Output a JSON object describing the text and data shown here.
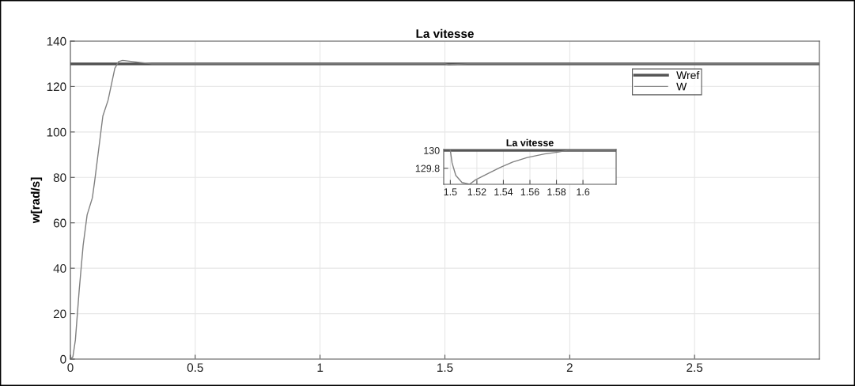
{
  "chart_data": [
    {
      "type": "line",
      "title": "La vitesse",
      "ylabel": "w[rad/s]",
      "xlim": [
        0,
        3
      ],
      "xticks": [
        0,
        0.5,
        1,
        1.5,
        2,
        2.5
      ],
      "ylim": [
        0,
        140
      ],
      "yticks": [
        0,
        20,
        40,
        60,
        80,
        100,
        120,
        140
      ],
      "grid": true,
      "legend": "top right",
      "series": [
        {
          "name": "Wref",
          "color": "#555555",
          "x": [
            0,
            3
          ],
          "values": [
            130,
            130
          ]
        },
        {
          "name": "W",
          "color": "#808080",
          "x": [
            0,
            0.01,
            0.02,
            0.035,
            0.051,
            0.067,
            0.088,
            0.098,
            0.13,
            0.151,
            0.178,
            0.193,
            0.209,
            0.25,
            0.326,
            1.5,
            1.515,
            1.59,
            3
          ],
          "values": [
            0,
            1,
            8.4,
            30,
            50,
            63.5,
            71,
            79,
            107,
            114,
            128,
            131,
            131.5,
            131,
            130,
            130,
            129.6,
            130,
            130
          ]
        }
      ]
    },
    {
      "type": "line",
      "title": "La vitesse",
      "xlim": [
        1.495,
        1.625
      ],
      "xticks": [
        1.5,
        1.52,
        1.54,
        1.56,
        1.58,
        1.6
      ],
      "ylim": [
        129.62,
        130.01
      ],
      "yticks": [
        129.8,
        130
      ],
      "grid": true,
      "series": [
        {
          "color": "#555555",
          "x": [
            1.495,
            1.625
          ],
          "values": [
            130,
            130
          ]
        },
        {
          "color": "#808080",
          "x": [
            1.5,
            1.5013,
            1.5041,
            1.5088,
            1.5144,
            1.519,
            1.5284,
            1.5377,
            1.547,
            1.558,
            1.571,
            1.581,
            1.588,
            1.625
          ],
          "values": [
            130,
            129.86,
            129.72,
            129.64,
            129.62,
            129.67,
            129.74,
            129.81,
            129.87,
            129.92,
            129.96,
            129.98,
            130,
            130
          ]
        }
      ]
    }
  ]
}
